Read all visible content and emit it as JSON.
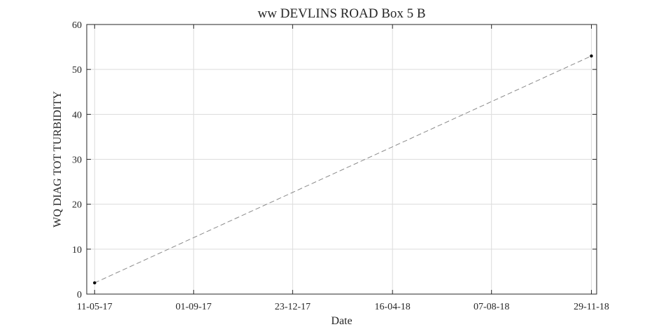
{
  "chart_data": {
    "type": "line",
    "title": "ww DEVLINS ROAD Box 5 B",
    "xlabel": "Date",
    "ylabel": "WQ DIAG TOT TURBIDITY",
    "x_axis": {
      "kind": "date",
      "range": [
        "2017-05-02",
        "2018-12-05"
      ],
      "ticks": [
        {
          "date": "2017-05-11",
          "label": "11-05-17"
        },
        {
          "date": "2017-09-01",
          "label": "01-09-17"
        },
        {
          "date": "2017-12-23",
          "label": "23-12-17"
        },
        {
          "date": "2018-04-16",
          "label": "16-04-18"
        },
        {
          "date": "2018-08-07",
          "label": "07-08-18"
        },
        {
          "date": "2018-11-29",
          "label": "29-11-18"
        }
      ]
    },
    "ylim": [
      0,
      60
    ],
    "y_ticks": [
      0,
      10,
      20,
      30,
      40,
      50,
      60
    ],
    "grid": true,
    "series": [
      {
        "color": "#8a8a8a",
        "line_style": "dashed",
        "marker_color": "#000000",
        "points": [
          {
            "x": "2017-05-11",
            "y": 2.5
          },
          {
            "x": "2018-11-29",
            "y": 53
          }
        ]
      }
    ]
  }
}
